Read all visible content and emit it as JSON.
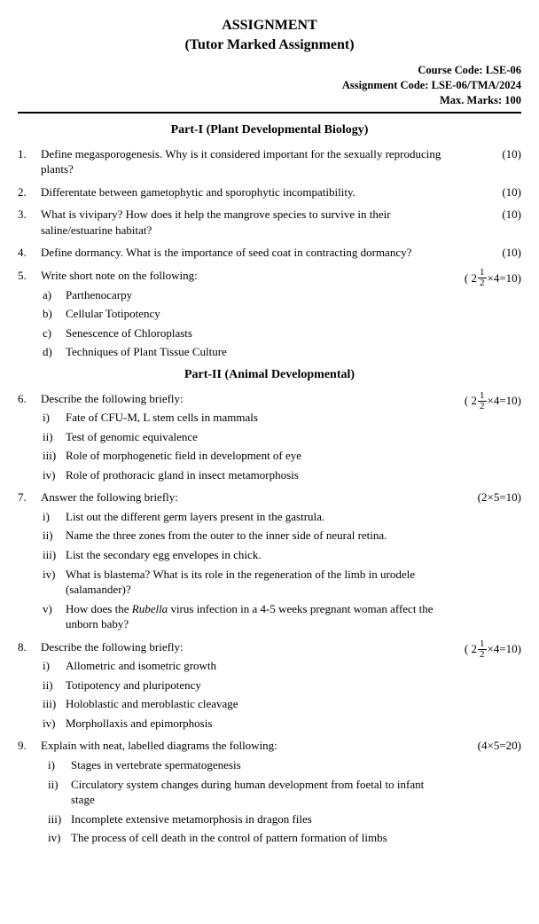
{
  "header": {
    "title_main": "ASSIGNMENT",
    "title_sub": "(Tutor Marked Assignment)",
    "course_code_label": "Course Code: LSE-06",
    "assignment_code_label": "Assignment Code: LSE-06/TMA/2024",
    "max_marks_label": "Max. Marks: 100"
  },
  "colors": {
    "text": "#000000",
    "background": "#ffffff",
    "rule": "#000000"
  },
  "typography": {
    "body_font": "Times New Roman",
    "body_size_pt": 10,
    "title_size_pt": 12
  },
  "parts": [
    {
      "heading": "Part-I (Plant Developmental Biology)",
      "questions": [
        {
          "num": "1.",
          "text": "Define megasporogenesis. Why is it considered important for the sexually reproducing plants?",
          "marks": "(10)",
          "frac": false
        },
        {
          "num": "2.",
          "text": "Differentate between gametophytic and sporophytic incompatibility.",
          "marks": "(10)",
          "frac": false
        },
        {
          "num": "3.",
          "text": "What is vivipary? How does it help the mangrove species to survive in their saline/estuarine habitat?",
          "marks": "(10)",
          "frac": false
        },
        {
          "num": "4.",
          "text": "Define dormancy. What is the importance of seed coat in contracting dormancy?",
          "marks": "(10)",
          "frac": false
        },
        {
          "num": "5.",
          "text": "Write short note on the following:",
          "marks_prefix": "( 2",
          "marks_frac_num": "1",
          "marks_frac_den": "2",
          "marks_suffix": "×4=10)",
          "frac": true,
          "subs": [
            {
              "label": "a)",
              "text": "Parthenocarpy"
            },
            {
              "label": "b)",
              "text": "Cellular Totipotency"
            },
            {
              "label": "c)",
              "text": "Senescence of Chloroplasts"
            },
            {
              "label": "d)",
              "text": "Techniques of Plant Tissue Culture"
            }
          ]
        }
      ]
    },
    {
      "heading": "Part-II (Animal Developmental)",
      "questions": [
        {
          "num": "6.",
          "text": "Describe the following briefly:",
          "marks_prefix": "( 2",
          "marks_frac_num": "1",
          "marks_frac_den": "2",
          "marks_suffix": "×4=10)",
          "frac": true,
          "subs": [
            {
              "label": "i)",
              "text": "Fate of CFU-M, L stem cells in mammals"
            },
            {
              "label": "ii)",
              "text": "Test of genomic equivalence"
            },
            {
              "label": "iii)",
              "text": "Role of morphogenetic field in development of eye"
            },
            {
              "label": "iv)",
              "text": "Role of prothoracic gland in insect metamorphosis"
            }
          ]
        },
        {
          "num": "7.",
          "text": "Answer the following briefly:",
          "marks": "(2×5=10)",
          "frac": false,
          "subs": [
            {
              "label": "i)",
              "text": "List out the different germ layers present in the gastrula."
            },
            {
              "label": "ii)",
              "text": "Name the three zones from the outer to the inner side of neural retina."
            },
            {
              "label": "iii)",
              "text": "List the secondary egg envelopes in chick."
            },
            {
              "label": "iv)",
              "text": "What is blastema? What is its role in the regeneration of the limb in urodele (salamander)?"
            },
            {
              "label": "v)",
              "html": "How does the <span class=\"italic\">Rubella</span> virus infection in a 4-5 weeks pregnant woman affect the unborn baby?"
            }
          ]
        },
        {
          "num": "8.",
          "text": "Describe the following briefly:",
          "marks_prefix": "( 2",
          "marks_frac_num": "1",
          "marks_frac_den": "2",
          "marks_suffix": "×4=10)",
          "frac": true,
          "subs": [
            {
              "label": "i)",
              "text": "Allometric and isometric growth"
            },
            {
              "label": "ii)",
              "text": "Totipotency and pluripotency"
            },
            {
              "label": "iii)",
              "text": "Holoblastic and meroblastic cleavage"
            },
            {
              "label": "iv)",
              "text": "Morphollaxis and epimorphosis"
            }
          ]
        },
        {
          "num": "9.",
          "text": "Explain with neat, labelled diagrams the following:",
          "marks": "(4×5=20)",
          "frac": false,
          "indent": true,
          "subs": [
            {
              "label": "i)",
              "text": "Stages in vertebrate spermatogenesis"
            },
            {
              "label": "ii)",
              "text": "Circulatory system changes during human development from foetal to infant stage"
            },
            {
              "label": "iii)",
              "text": "Incomplete extensive metamorphosis in dragon files"
            },
            {
              "label": "iv)",
              "text": "The process of cell death in the control of pattern formation of limbs"
            }
          ]
        }
      ]
    }
  ]
}
